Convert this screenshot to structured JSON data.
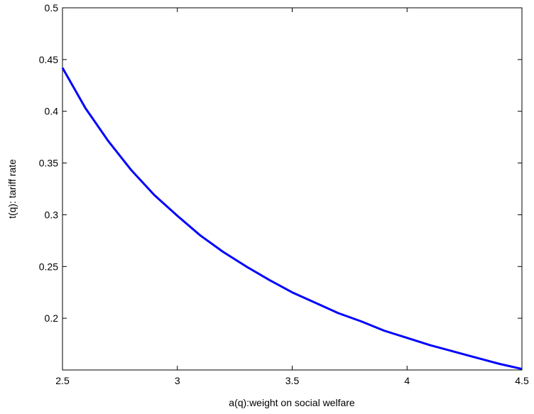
{
  "chart_data": {
    "type": "line",
    "x_label": "a(q):weight on social welfare",
    "y_label": "t(q): tariff rate",
    "x": [
      2.5,
      2.6,
      2.7,
      2.8,
      2.9,
      3.0,
      3.1,
      3.2,
      3.3,
      3.4,
      3.5,
      3.6,
      3.7,
      3.8,
      3.9,
      4.0,
      4.1,
      4.2,
      4.3,
      4.4,
      4.5
    ],
    "series": [
      {
        "color": "#0000ff",
        "values": [
          0.442,
          0.403,
          0.371,
          0.343,
          0.319,
          0.299,
          0.28,
          0.264,
          0.25,
          0.237,
          0.225,
          0.215,
          0.205,
          0.197,
          0.188,
          0.181,
          0.174,
          0.168,
          0.162,
          0.156,
          0.151
        ]
      }
    ],
    "xlim": [
      2.5,
      4.5
    ],
    "xticks": [
      2.5,
      3,
      3.5,
      4,
      4.5
    ],
    "ylim": [
      0.15,
      0.5
    ],
    "yticks": [
      0.2,
      0.25,
      0.3,
      0.35,
      0.4,
      0.45,
      0.5
    ],
    "grid": false
  }
}
